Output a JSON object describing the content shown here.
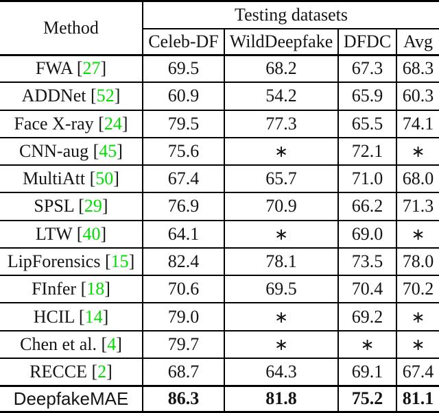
{
  "table": {
    "header": {
      "method_label": "Method",
      "group_label": "Testing datasets",
      "columns": [
        "Celeb-DF",
        "WildDeepfake",
        "DFDC",
        "Avg"
      ]
    },
    "rows": [
      {
        "method": "FWA",
        "cite": "27",
        "values": [
          "69.5",
          "68.2",
          "67.3",
          "68.3"
        ]
      },
      {
        "method": "ADDNet",
        "cite": "52",
        "values": [
          "60.9",
          "54.2",
          "65.9",
          "60.3"
        ]
      },
      {
        "method": "Face X-ray",
        "cite": "24",
        "values": [
          "79.5",
          "77.3",
          "65.5",
          "74.1"
        ]
      },
      {
        "method": "CNN-aug",
        "cite": "45",
        "values": [
          "75.6",
          "∗",
          "72.1",
          "∗"
        ]
      },
      {
        "method": "MultiAtt",
        "cite": "50",
        "values": [
          "67.4",
          "65.7",
          "71.0",
          "68.0"
        ]
      },
      {
        "method": "SPSL",
        "cite": "29",
        "values": [
          "76.9",
          "70.9",
          "66.2",
          "71.3"
        ]
      },
      {
        "method": "LTW",
        "cite": "40",
        "values": [
          "64.1",
          "∗",
          "69.0",
          "∗"
        ]
      },
      {
        "method": "LipForensics",
        "cite": "15",
        "values": [
          "82.4",
          "78.1",
          "73.5",
          "78.0"
        ]
      },
      {
        "method": "FInfer",
        "cite": "18",
        "values": [
          "70.6",
          "69.5",
          "70.4",
          "70.2"
        ]
      },
      {
        "method": "HCIL",
        "cite": "14",
        "values": [
          "79.0",
          "∗",
          "69.2",
          "∗"
        ]
      },
      {
        "method": "Chen et al.",
        "cite": "4",
        "values": [
          "79.7",
          "∗",
          "∗",
          "∗"
        ]
      },
      {
        "method": "RECCE",
        "cite": "2",
        "values": [
          "68.7",
          "64.3",
          "69.1",
          "67.4"
        ]
      },
      {
        "method": "DeepfakeMAE",
        "cite": null,
        "values": [
          "86.3",
          "81.8",
          "75.2",
          "81.1"
        ],
        "ours": true
      }
    ],
    "colors": {
      "citation_green": "#00dd00",
      "text": "#141414",
      "rule": "#000000"
    }
  }
}
